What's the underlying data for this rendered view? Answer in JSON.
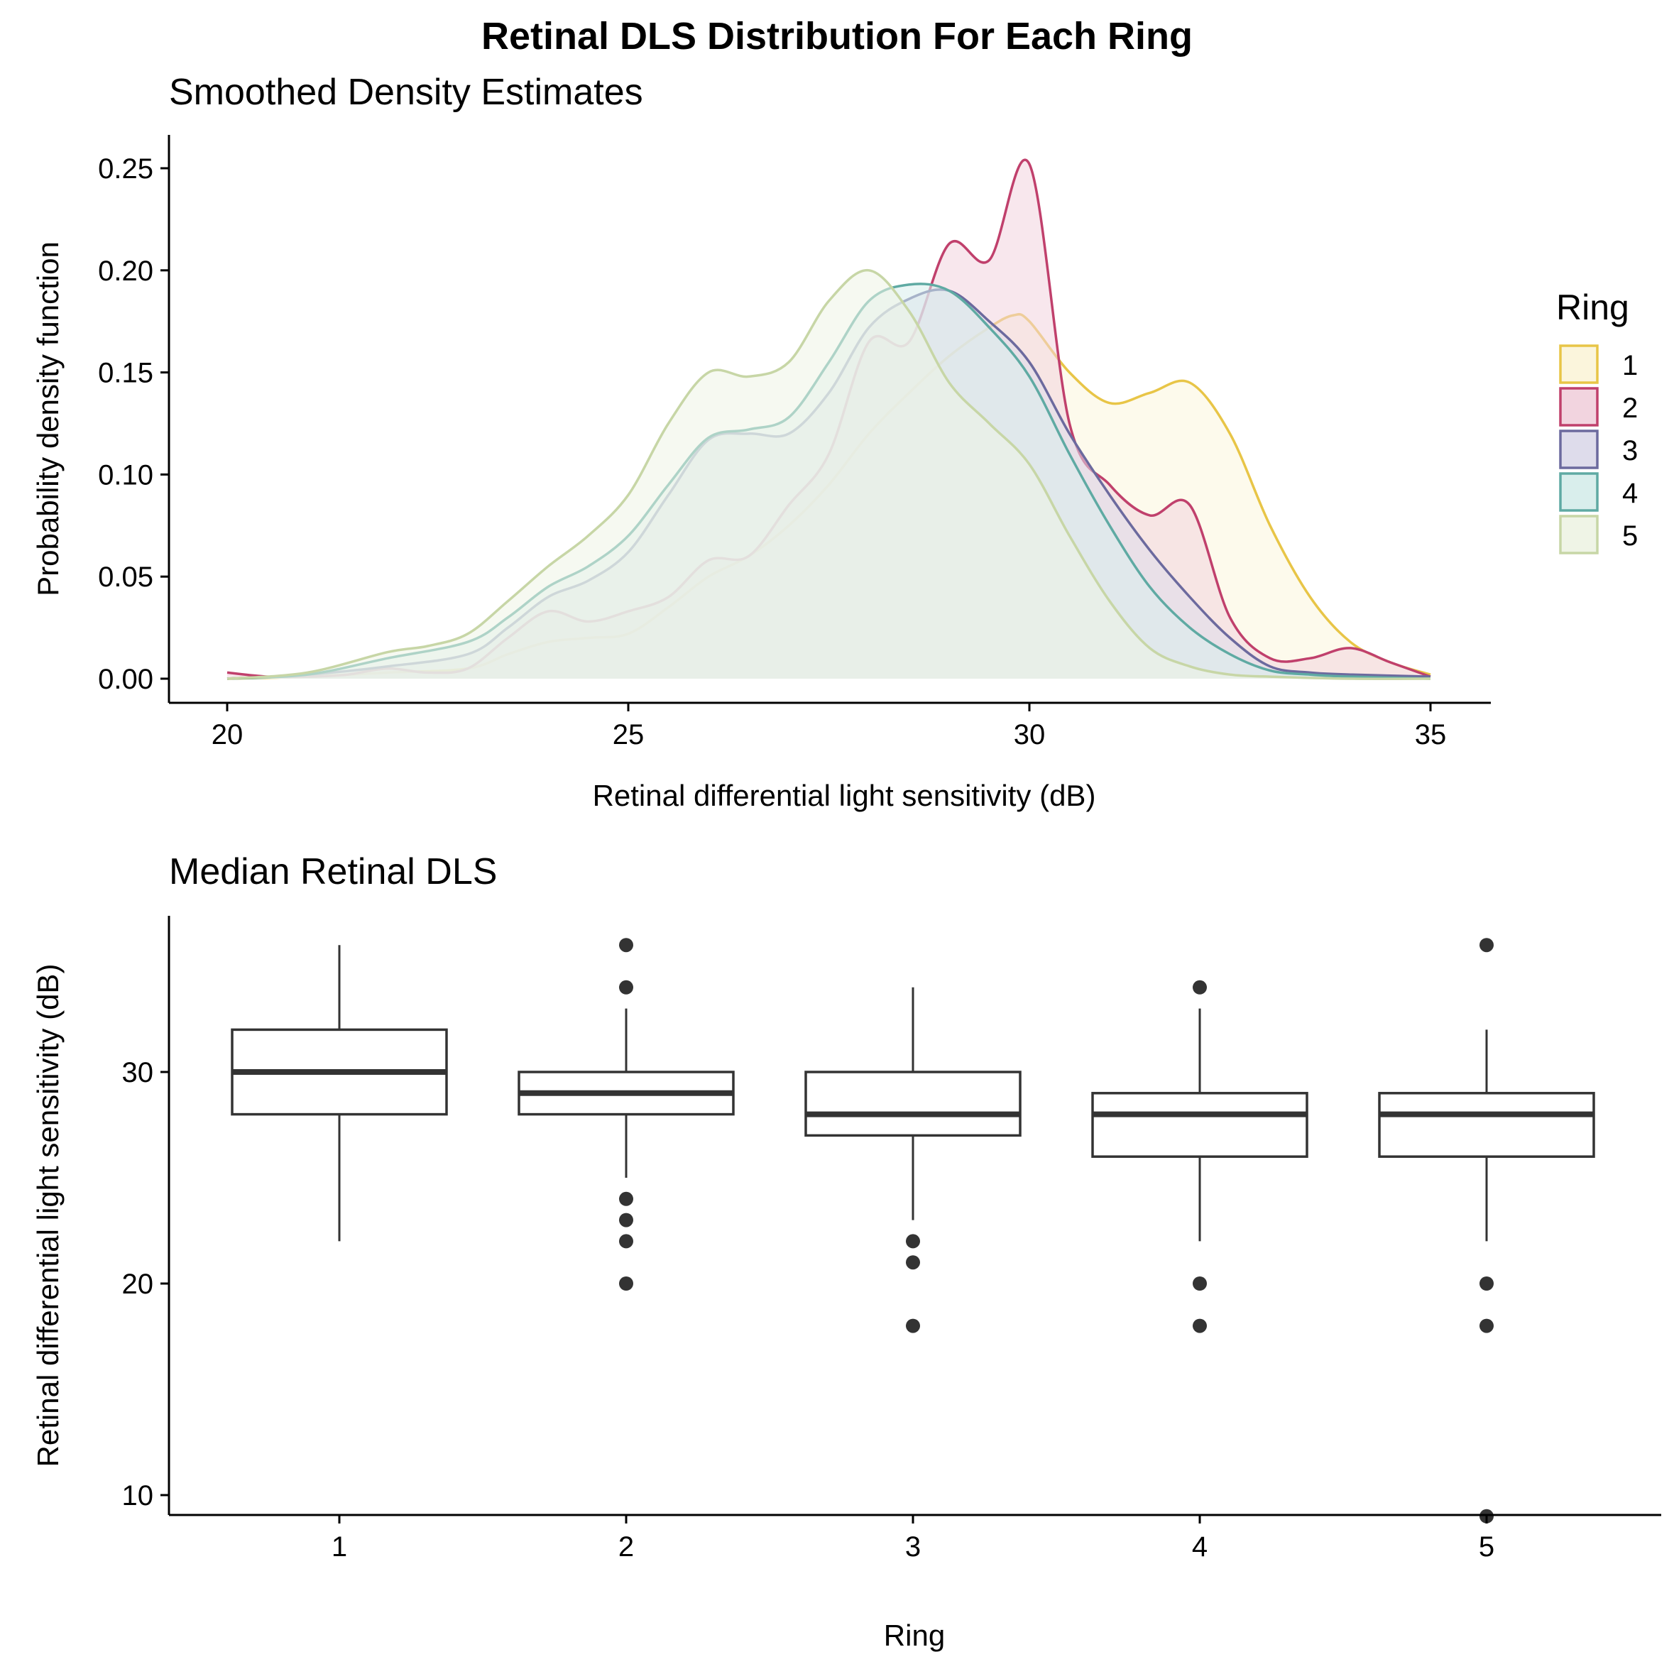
{
  "title": "Retinal DLS Distribution For Each Ring",
  "chart_data": [
    {
      "type": "area",
      "subtitle": "Smoothed Density Estimates",
      "xlabel": "Retinal differential light sensitivity (dB)",
      "ylabel": "Probability density function",
      "xlim": [
        20,
        35
      ],
      "ylim": [
        0,
        0.26
      ],
      "xticks": [
        "20",
        "25",
        "30",
        "35"
      ],
      "yticks": [
        "0.00",
        "0.05",
        "0.10",
        "0.15",
        "0.20",
        "0.25"
      ],
      "legend": {
        "title": "Ring",
        "position": "right"
      },
      "series": [
        {
          "name": "1",
          "color": "#E8C547",
          "fill": "#FBF5DC",
          "x": [
            20,
            21,
            22,
            23,
            23.5,
            24,
            24.5,
            25,
            25.5,
            26,
            26.5,
            27,
            27.5,
            28,
            28.5,
            29,
            29.5,
            29.8,
            30,
            30.5,
            31,
            31.5,
            32,
            32.5,
            33,
            33.5,
            34,
            34.5,
            35
          ],
          "y": [
            0.0,
            0.001,
            0.003,
            0.005,
            0.012,
            0.018,
            0.02,
            0.022,
            0.035,
            0.05,
            0.06,
            0.075,
            0.095,
            0.12,
            0.14,
            0.158,
            0.172,
            0.178,
            0.175,
            0.15,
            0.135,
            0.14,
            0.145,
            0.12,
            0.075,
            0.04,
            0.018,
            0.008,
            0.002
          ]
        },
        {
          "name": "2",
          "color": "#C0406C",
          "fill": "#F2D4DF",
          "x": [
            20,
            20.5,
            21,
            21.5,
            22,
            22.5,
            23,
            23.5,
            24,
            24.5,
            25,
            25.5,
            26,
            26.5,
            27,
            27.5,
            28,
            28.5,
            29,
            29.5,
            30,
            30.5,
            31,
            31.5,
            32,
            32.5,
            33,
            33.5,
            34,
            34.5,
            35
          ],
          "y": [
            0.003,
            0.001,
            0.001,
            0.002,
            0.005,
            0.003,
            0.005,
            0.02,
            0.033,
            0.028,
            0.033,
            0.04,
            0.058,
            0.06,
            0.085,
            0.11,
            0.165,
            0.165,
            0.213,
            0.205,
            0.252,
            0.125,
            0.095,
            0.08,
            0.085,
            0.03,
            0.01,
            0.01,
            0.015,
            0.008,
            0.001
          ]
        },
        {
          "name": "3",
          "color": "#6C6A9E",
          "fill": "#DEDCEB",
          "x": [
            20,
            21,
            22,
            23,
            23.5,
            24,
            24.5,
            25,
            25.5,
            26,
            26.5,
            27,
            27.5,
            28,
            28.5,
            29,
            29.5,
            30,
            30.5,
            31,
            31.5,
            32,
            32.5,
            33,
            33.5,
            34,
            35
          ],
          "y": [
            0.0,
            0.002,
            0.006,
            0.012,
            0.025,
            0.04,
            0.048,
            0.062,
            0.09,
            0.117,
            0.12,
            0.12,
            0.14,
            0.172,
            0.186,
            0.19,
            0.175,
            0.155,
            0.12,
            0.09,
            0.063,
            0.04,
            0.02,
            0.006,
            0.003,
            0.002,
            0.001
          ]
        },
        {
          "name": "4",
          "color": "#5FAAA3",
          "fill": "#D9EEEC",
          "x": [
            20,
            21,
            22,
            23,
            23.5,
            24,
            24.5,
            25,
            25.5,
            26,
            26.5,
            27,
            27.5,
            28,
            28.5,
            29,
            29.5,
            30,
            30.5,
            31,
            31.5,
            32,
            32.5,
            33,
            33.5,
            34,
            35
          ],
          "y": [
            0.0,
            0.002,
            0.01,
            0.018,
            0.03,
            0.045,
            0.055,
            0.07,
            0.095,
            0.118,
            0.122,
            0.128,
            0.155,
            0.185,
            0.193,
            0.19,
            0.172,
            0.148,
            0.11,
            0.075,
            0.045,
            0.025,
            0.012,
            0.004,
            0.002,
            0.001,
            0.0
          ]
        },
        {
          "name": "5",
          "color": "#C7D6A6",
          "fill": "#EFF4E6",
          "x": [
            20,
            21,
            22,
            22.5,
            23,
            23.5,
            24,
            24.5,
            25,
            25.5,
            26,
            26.5,
            27,
            27.5,
            28,
            28.5,
            29,
            29.5,
            30,
            30.5,
            31,
            31.5,
            32,
            32.5,
            33,
            34,
            35
          ],
          "y": [
            0.0,
            0.003,
            0.013,
            0.016,
            0.022,
            0.038,
            0.055,
            0.07,
            0.09,
            0.125,
            0.15,
            0.148,
            0.155,
            0.185,
            0.2,
            0.18,
            0.145,
            0.125,
            0.105,
            0.07,
            0.038,
            0.015,
            0.006,
            0.002,
            0.001,
            0.0,
            0.0
          ]
        }
      ]
    },
    {
      "type": "box",
      "subtitle": "Median Retinal DLS",
      "xlabel": "Ring",
      "ylabel": "Retinal differential light sensitivity (dB)",
      "categories": [
        "1",
        "2",
        "3",
        "4",
        "5"
      ],
      "ylim": [
        8,
        37
      ],
      "yticks": [
        "10",
        "20",
        "30"
      ],
      "boxes": [
        {
          "category": "1",
          "whisker_low": 22,
          "q1": 28,
          "median": 30,
          "q3": 32,
          "whisker_high": 36,
          "outliers": []
        },
        {
          "category": "2",
          "whisker_low": 25,
          "q1": 28,
          "median": 29,
          "q3": 30,
          "whisker_high": 33,
          "outliers": [
            36,
            34,
            24,
            23,
            22,
            20
          ]
        },
        {
          "category": "3",
          "whisker_low": 23,
          "q1": 27,
          "median": 28,
          "q3": 30,
          "whisker_high": 34,
          "outliers": [
            22,
            21,
            18
          ]
        },
        {
          "category": "4",
          "whisker_low": 22,
          "q1": 26,
          "median": 28,
          "q3": 29,
          "whisker_high": 33,
          "outliers": [
            34,
            20,
            18
          ]
        },
        {
          "category": "5",
          "whisker_low": 22,
          "q1": 26,
          "median": 28,
          "q3": 29,
          "whisker_high": 32,
          "outliers": [
            36,
            20,
            18,
            9
          ]
        }
      ]
    }
  ]
}
